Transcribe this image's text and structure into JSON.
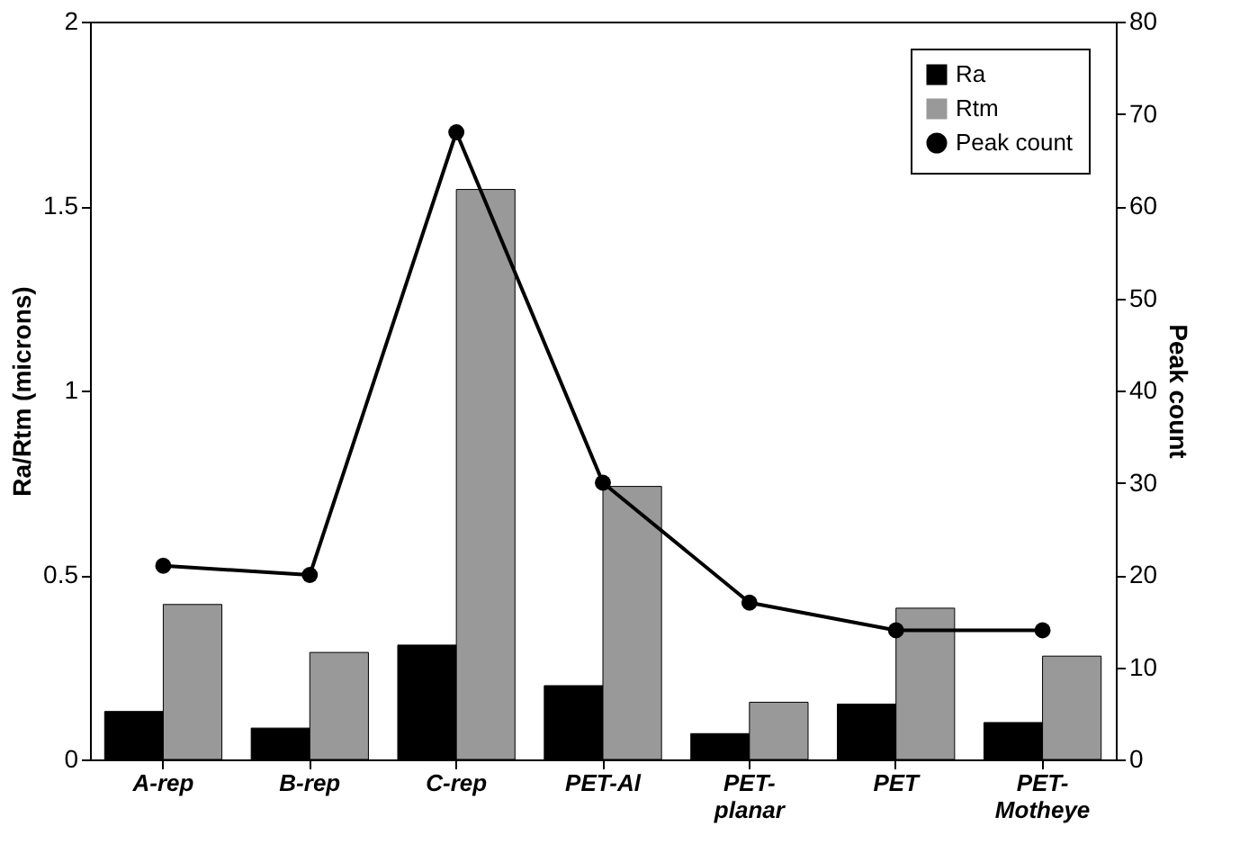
{
  "chart_data": {
    "type": "bar",
    "ylabel": "Ra/Rtm (microns)",
    "y2label": "Peak count",
    "categories": [
      "A-rep",
      "B-rep",
      "C-rep",
      "PET-Al",
      "PET-planar",
      "PET",
      "PET-Motheye"
    ],
    "series": [
      {
        "name": "Ra",
        "color": "#000000",
        "values": [
          0.13,
          0.085,
          0.31,
          0.2,
          0.07,
          0.15,
          0.1
        ]
      },
      {
        "name": "Rtm",
        "color": "#999999",
        "values": [
          0.42,
          0.29,
          1.545,
          0.74,
          0.155,
          0.41,
          0.28
        ]
      },
      {
        "name": "Peak count",
        "type": "line",
        "axis": "y2",
        "marker": "circle",
        "color": "#000000",
        "values": [
          21,
          20,
          68,
          30,
          17,
          14,
          14
        ]
      }
    ],
    "ylim": [
      0,
      2
    ],
    "yticks": [
      0,
      0.5,
      1,
      1.5,
      2
    ],
    "y2lim": [
      0,
      80
    ],
    "y2ticks": [
      0,
      10,
      20,
      30,
      40,
      50,
      60,
      70,
      80
    ],
    "legend": "top right",
    "grid": false
  }
}
